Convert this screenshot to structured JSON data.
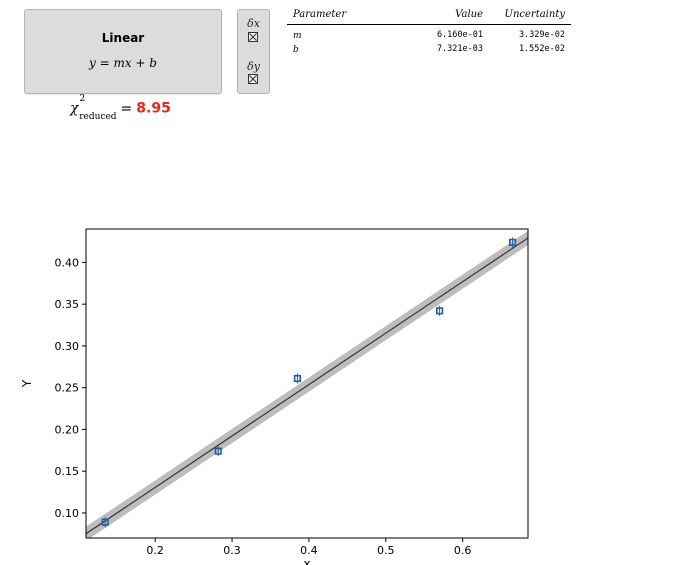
{
  "model": {
    "name": "Linear",
    "equation": "y = mx + b"
  },
  "error_toggles": {
    "x_label": "δx",
    "y_label": "δy",
    "x_checked": true,
    "y_checked": true
  },
  "fit_stat": {
    "symbol": "χ",
    "superscript": "2",
    "subscript": "reduced",
    "equals": "=",
    "value": "8.95",
    "value_color": "#e8261d"
  },
  "params_table": {
    "headers": {
      "parameter": "Parameter",
      "value": "Value",
      "uncertainty": "Uncertainty"
    },
    "rows": [
      {
        "parameter": "m",
        "value": "6.160e-01",
        "uncertainty": "3.329e-02"
      },
      {
        "parameter": "b",
        "value": "7.321e-03",
        "uncertainty": "1.552e-02"
      }
    ]
  },
  "chart_data": {
    "type": "scatter",
    "xlabel": "x",
    "ylabel": "Y",
    "xlim": [
      0.11,
      0.685
    ],
    "ylim": [
      0.07,
      0.44
    ],
    "xticks": [
      "0.2",
      "0.3",
      "0.4",
      "0.5",
      "0.6"
    ],
    "xtick_values": [
      0.2,
      0.3,
      0.4,
      0.5,
      0.6
    ],
    "yticks": [
      "0.10",
      "0.15",
      "0.20",
      "0.25",
      "0.30",
      "0.35",
      "0.40"
    ],
    "ytick_values": [
      0.1,
      0.15,
      0.2,
      0.25,
      0.3,
      0.35,
      0.4
    ],
    "points": [
      {
        "x": 0.135,
        "y": 0.089
      },
      {
        "x": 0.282,
        "y": 0.174
      },
      {
        "x": 0.385,
        "y": 0.261
      },
      {
        "x": 0.57,
        "y": 0.342
      },
      {
        "x": 0.665,
        "y": 0.424
      }
    ],
    "fit": {
      "m": 0.616,
      "b": 0.007321
    },
    "band_halfwidth": 0.0085,
    "grid": false,
    "marker_color": "#1f5fa8",
    "line_color": "#333333",
    "band_color": "#bdbdbd"
  }
}
